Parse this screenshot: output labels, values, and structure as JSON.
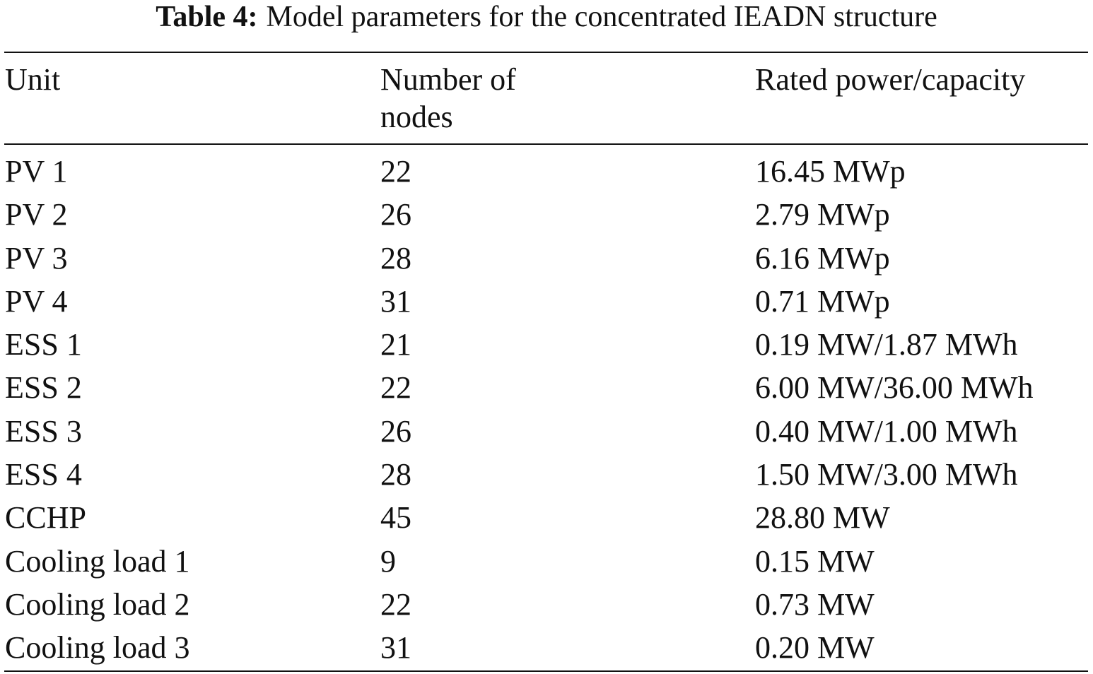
{
  "caption": {
    "label": "Table 4:",
    "text": "Model parameters for the concentrated IEADN structure"
  },
  "table": {
    "headers": {
      "unit": "Unit",
      "nodes_line1": "Number of",
      "nodes_line2": "nodes",
      "power": "Rated power/capacity"
    },
    "rows": [
      {
        "unit": "PV 1",
        "nodes": "22",
        "power": "16.45 MWp"
      },
      {
        "unit": "PV 2",
        "nodes": "26",
        "power": "2.79 MWp"
      },
      {
        "unit": "PV 3",
        "nodes": "28",
        "power": "6.16 MWp"
      },
      {
        "unit": "PV 4",
        "nodes": "31",
        "power": "0.71 MWp"
      },
      {
        "unit": "ESS 1",
        "nodes": "21",
        "power": "0.19 MW/1.87 MWh"
      },
      {
        "unit": "ESS 2",
        "nodes": "22",
        "power": "6.00 MW/36.00 MWh"
      },
      {
        "unit": "ESS 3",
        "nodes": "26",
        "power": "0.40 MW/1.00 MWh"
      },
      {
        "unit": "ESS 4",
        "nodes": "28",
        "power": "1.50 MW/3.00 MWh"
      },
      {
        "unit": "CCHP",
        "nodes": "45",
        "power": "28.80 MW"
      },
      {
        "unit": "Cooling load 1",
        "nodes": "9",
        "power": "0.15 MW"
      },
      {
        "unit": "Cooling load 2",
        "nodes": "22",
        "power": "0.73 MW"
      },
      {
        "unit": "Cooling load 3",
        "nodes": "31",
        "power": "0.20 MW"
      }
    ]
  }
}
